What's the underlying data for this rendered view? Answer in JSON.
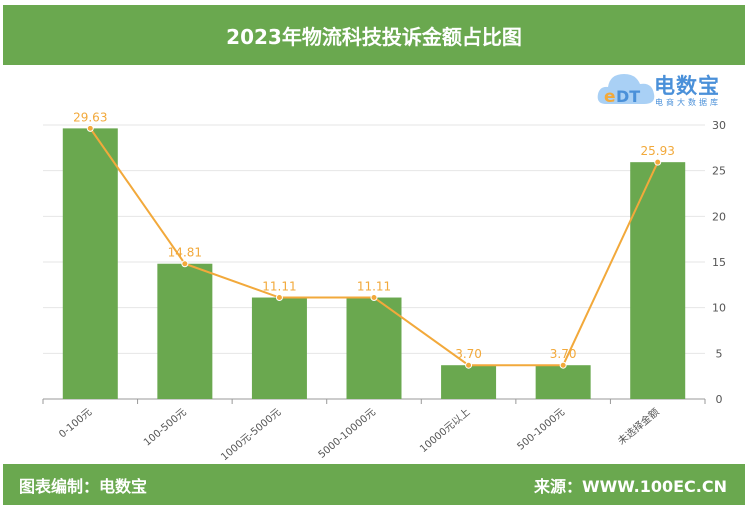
{
  "header": {
    "title": "2023年物流科技投诉金额占比图"
  },
  "footer": {
    "left": "图表编制：电数宝",
    "right": "来源：WWW.100EC.CN"
  },
  "logo": {
    "text": "电数宝",
    "tagline": "电商大数据库",
    "icon": "cloud-edt-logo"
  },
  "colors": {
    "bar": "#6aa84f",
    "line": "#f2a93b",
    "header": "#6aa84f"
  },
  "chart_data": {
    "type": "bar",
    "title": "2023年物流科技投诉金额占比图",
    "categories": [
      "0-100元",
      "100-500元",
      "1000元-5000元",
      "5000-10000元",
      "10000元以上",
      "500-1000元",
      "未选择金额"
    ],
    "series": [
      {
        "type": "bar",
        "values": [
          29.63,
          14.81,
          11.11,
          11.11,
          3.7,
          3.7,
          25.93
        ]
      },
      {
        "type": "line",
        "values": [
          29.63,
          14.81,
          11.11,
          11.11,
          3.7,
          3.7,
          25.93
        ]
      }
    ],
    "data_labels": [
      "29.63",
      "14.81",
      "11.11",
      "11.11",
      "3.70",
      "3.70",
      "25.93"
    ],
    "ylim": [
      0,
      30
    ],
    "yticks": [
      0,
      5,
      10,
      15,
      20,
      25,
      30
    ],
    "y_axis_position": "right",
    "grid": true
  }
}
